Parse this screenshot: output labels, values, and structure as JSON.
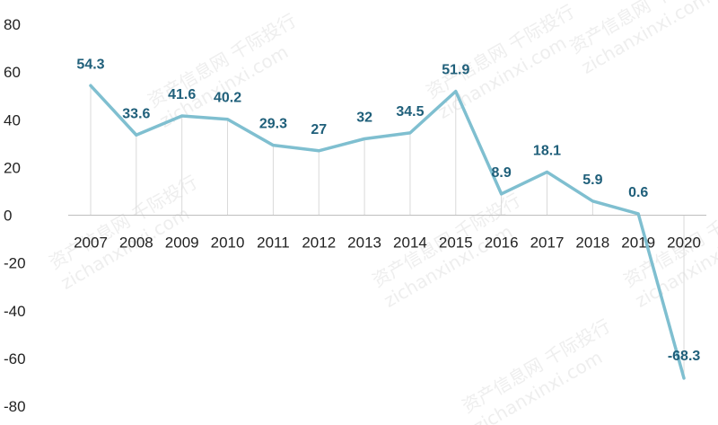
{
  "chart_data": {
    "type": "line",
    "categories": [
      "2007",
      "2008",
      "2009",
      "2010",
      "2011",
      "2012",
      "2013",
      "2014",
      "2015",
      "2016",
      "2017",
      "2018",
      "2019",
      "2020"
    ],
    "values": [
      54.3,
      33.6,
      41.6,
      40.2,
      29.3,
      27,
      32,
      34.5,
      51.9,
      8.9,
      18.1,
      5.9,
      0.6,
      -68.3
    ],
    "data_labels": [
      "54.3",
      "33.6",
      "41.6",
      "40.2",
      "29.3",
      "27",
      "32",
      "34.5",
      "51.9",
      "8.9",
      "18.1",
      "5.9",
      "0.6",
      "-68.3"
    ],
    "y_ticks": [
      "80",
      "60",
      "40",
      "20",
      "0",
      "-20",
      "-40",
      "-60",
      "-80"
    ],
    "ylim": [
      -80,
      80
    ],
    "ystep": 20,
    "grid": false,
    "drop_lines": true,
    "colors": {
      "line": "#7fbfd0",
      "label": "#1f5f7a",
      "drop_line": "#d9d9d9"
    }
  },
  "watermark": {
    "lines": [
      "资产信息网 千际投行",
      "zichanxinxi.com"
    ]
  }
}
